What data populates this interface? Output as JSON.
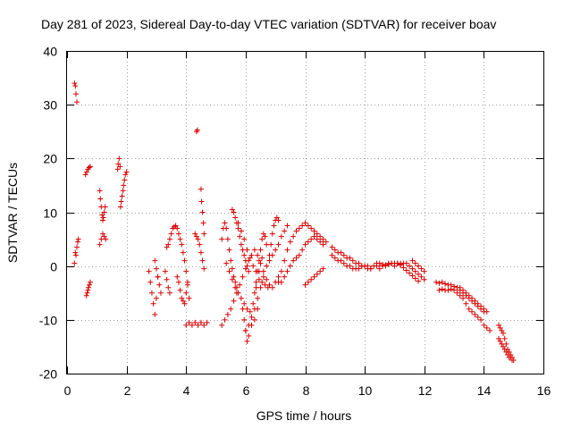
{
  "chart_data": {
    "type": "scatter",
    "title": "Day 281 of 2023, Sidereal Day-to-day VTEC variation (SDTVAR) for receiver boav",
    "xlabel": "GPS time / hours",
    "ylabel": "SDTVAR / TECUs",
    "xlim": [
      0,
      16
    ],
    "ylim": [
      -20,
      40
    ],
    "xticks": [
      "0",
      "2",
      "4",
      "6",
      "8",
      "10",
      "12",
      "14",
      "16"
    ],
    "yticks": [
      "-20",
      "-10",
      "0",
      "10",
      "20",
      "30",
      "40"
    ],
    "grid": true,
    "marker": "+",
    "color": "#e00000",
    "series": [
      {
        "name": "s1",
        "x": [
          0.25,
          0.28,
          0.3,
          0.33
        ],
        "y": [
          34,
          33.5,
          32,
          30.5
        ]
      },
      {
        "name": "s2",
        "x": [
          0.25,
          0.28,
          0.3,
          0.33,
          0.36,
          0.38
        ],
        "y": [
          0.5,
          2.5,
          2.0,
          3.5,
          4.5,
          5.0
        ]
      },
      {
        "name": "s3",
        "x": [
          0.62,
          0.66,
          0.7,
          0.74,
          0.78
        ],
        "y": [
          17,
          17.5,
          18,
          18.3,
          18.5
        ]
      },
      {
        "name": "s4",
        "x": [
          0.65,
          0.68,
          0.7,
          0.72,
          0.75,
          0.78
        ],
        "y": [
          -5.5,
          -5,
          -4.5,
          -4,
          -3.5,
          -3
        ]
      },
      {
        "name": "s5",
        "x": [
          1.1,
          1.12,
          1.15,
          1.18,
          1.2,
          1.22,
          1.25,
          1.28
        ],
        "y": [
          14,
          12.5,
          11,
          9.5,
          8.5,
          9,
          10,
          11
        ]
      },
      {
        "name": "s6",
        "x": [
          1.1,
          1.15,
          1.2,
          1.25,
          1.3
        ],
        "y": [
          4,
          5,
          6,
          5.5,
          5
        ]
      },
      {
        "name": "s7",
        "x": [
          1.7,
          1.72,
          1.75,
          1.78,
          1.8,
          1.82,
          1.85,
          1.88,
          1.9,
          1.93,
          1.96,
          2.0
        ],
        "y": [
          18,
          19,
          20,
          18.5,
          11,
          12,
          13,
          14,
          15,
          16,
          17,
          17.5
        ]
      },
      {
        "name": "s8",
        "x": [
          2.75,
          2.8,
          2.85,
          2.9,
          2.95,
          3.0,
          3.05
        ],
        "y": [
          -1,
          -3,
          -5,
          -7,
          -9,
          -6,
          -2
        ]
      },
      {
        "name": "s9",
        "x": [
          2.95,
          3.0,
          3.05,
          3.1,
          3.15
        ],
        "y": [
          1,
          -0.5,
          -2,
          -3.5,
          -5
        ]
      },
      {
        "name": "s10",
        "x": [
          3.3,
          3.35,
          3.4,
          3.45
        ],
        "y": [
          -1,
          -2.5,
          -4,
          -5
        ]
      },
      {
        "name": "s11",
        "x": [
          3.35,
          3.4,
          3.45,
          3.5,
          3.55,
          3.6,
          3.65,
          3.7,
          3.75,
          3.8,
          3.85,
          3.9,
          3.95,
          4.0,
          4.05,
          4.1
        ],
        "y": [
          3.5,
          4,
          5,
          6,
          7,
          7.3,
          7.5,
          7,
          6,
          5,
          4,
          2.5,
          1,
          -1,
          -3.5,
          -6
        ]
      },
      {
        "name": "s12",
        "x": [
          3.7,
          3.75,
          3.8,
          3.85,
          3.9,
          3.95,
          4.0,
          4.05
        ],
        "y": [
          -2,
          -3,
          -4.5,
          -6,
          -6.5,
          -7,
          -5,
          -3
        ]
      },
      {
        "name": "s13",
        "x": [
          4.0,
          4.1,
          4.2,
          4.3,
          4.4,
          4.5,
          4.6,
          4.7
        ],
        "y": [
          -11,
          -10.5,
          -11,
          -10.5,
          -11,
          -10.5,
          -11,
          -10.5
        ]
      },
      {
        "name": "s14",
        "x": [
          4.3,
          4.35,
          4.4,
          4.45,
          4.5,
          4.55,
          4.6
        ],
        "y": [
          6,
          5.5,
          5,
          4,
          2.5,
          1,
          -0.5
        ]
      },
      {
        "name": "s15",
        "x": [
          4.35,
          4.38
        ],
        "y": [
          25,
          25.3
        ]
      },
      {
        "name": "s16",
        "x": [
          4.5,
          4.52,
          4.55,
          4.58,
          4.6
        ],
        "y": [
          14.3,
          12,
          10,
          8,
          6
        ]
      },
      {
        "name": "s17",
        "x": [
          5.2,
          5.3,
          5.4,
          5.5,
          5.6,
          5.7,
          5.8,
          5.9,
          6.0,
          6.1,
          6.2,
          6.3,
          6.4,
          6.5,
          6.6,
          6.7,
          6.8,
          6.9,
          7.0,
          7.1
        ],
        "y": [
          -11,
          -10,
          -9,
          -8,
          -6.5,
          -5,
          -3.5,
          -2,
          -0.5,
          1,
          2,
          3,
          2,
          0.5,
          -1,
          -2.5,
          -3.5,
          -4,
          -3,
          -2
        ]
      },
      {
        "name": "s18",
        "x": [
          5.35,
          5.45,
          5.55,
          5.65,
          5.75,
          5.85,
          5.95,
          6.05,
          6.15,
          6.25,
          6.35,
          6.45,
          6.55
        ],
        "y": [
          0.5,
          -1,
          -2.5,
          -4,
          -5,
          -6,
          -7,
          -8,
          -8.5,
          -7,
          -4,
          -1,
          1.5
        ]
      },
      {
        "name": "s19",
        "x": [
          5.2,
          5.25,
          5.3,
          5.35,
          5.4,
          5.45,
          5.5,
          5.55,
          5.6,
          5.65,
          5.7
        ],
        "y": [
          5,
          7,
          8,
          7,
          5,
          3,
          1,
          -0.5,
          -2,
          -3,
          -4
        ]
      },
      {
        "name": "s20",
        "x": [
          5.55,
          5.6,
          5.65,
          5.7,
          5.75,
          5.8,
          5.85,
          5.9,
          5.95,
          6.0,
          6.05,
          6.1
        ],
        "y": [
          10.5,
          10,
          9,
          8,
          7,
          5.5,
          4,
          3,
          2,
          1,
          0,
          -1
        ]
      },
      {
        "name": "s21",
        "x": [
          5.75,
          5.85,
          5.95,
          6.05,
          6.15,
          6.25,
          6.35,
          6.45,
          6.55,
          6.65,
          6.75
        ],
        "y": [
          8,
          6.5,
          5,
          3,
          1.5,
          0,
          -1,
          -2.5,
          -3,
          -3.5,
          -4
        ]
      },
      {
        "name": "s22",
        "x": [
          5.9,
          5.95,
          6.0,
          6.05,
          6.1,
          6.2,
          6.3,
          6.4
        ],
        "y": [
          -8,
          -10,
          -12,
          -14,
          -13,
          -11,
          -10,
          -8
        ]
      },
      {
        "name": "s23",
        "x": [
          6.0,
          6.1,
          6.2,
          6.3,
          6.4,
          6.5,
          6.6,
          6.7,
          6.8,
          6.9,
          7.0,
          7.1,
          7.2,
          7.3,
          7.4
        ],
        "y": [
          -12,
          -11,
          -9.5,
          -8,
          -6,
          -4,
          -2,
          0,
          1,
          2,
          3,
          4,
          5.5,
          6.5,
          7.5
        ]
      },
      {
        "name": "s24",
        "x": [
          6.3,
          6.35,
          6.4,
          6.45,
          6.5,
          6.55,
          6.6,
          6.65,
          6.7
        ],
        "y": [
          -5,
          -3,
          -1,
          1,
          3,
          5,
          6,
          5.5,
          4
        ]
      },
      {
        "name": "s25",
        "x": [
          6.8,
          6.85,
          6.9,
          6.95,
          7.0,
          7.05,
          7.1
        ],
        "y": [
          2,
          4,
          6,
          7.5,
          8.5,
          9,
          8.5
        ]
      },
      {
        "name": "s26",
        "x": [
          7.1,
          7.2,
          7.3,
          7.4,
          7.5,
          7.6,
          7.7,
          7.8,
          7.9,
          8.0,
          8.1,
          8.2,
          8.3,
          8.4,
          8.5,
          8.6,
          8.7
        ],
        "y": [
          -3,
          -1,
          1,
          3,
          4.5,
          5.5,
          6.5,
          7,
          7.5,
          8,
          7.5,
          7,
          6.5,
          6,
          5.5,
          5,
          4.5
        ]
      },
      {
        "name": "s27",
        "x": [
          7.2,
          7.3,
          7.4,
          7.5,
          7.6,
          7.7,
          7.8,
          7.9,
          8.0,
          8.1,
          8.2,
          8.3,
          8.4,
          8.5,
          8.6
        ],
        "y": [
          -3,
          -2,
          -1,
          0,
          1,
          1.5,
          2,
          3,
          4,
          4.5,
          5,
          5.5,
          5,
          4.5,
          4
        ]
      },
      {
        "name": "s28",
        "x": [
          8.0,
          8.1,
          8.2,
          8.3,
          8.4,
          8.5,
          8.6
        ],
        "y": [
          -3.5,
          -3,
          -2.5,
          -2,
          -1.5,
          -1,
          -0.5
        ]
      },
      {
        "name": "s29",
        "x": [
          8.9,
          9.0,
          9.1,
          9.2,
          9.3,
          9.4,
          9.5,
          9.6,
          9.7,
          9.8,
          9.9,
          10.0,
          10.1,
          10.2,
          10.3,
          10.4,
          10.5,
          10.6,
          10.7,
          10.8,
          10.9,
          11.0,
          11.1,
          11.2
        ],
        "y": [
          3.5,
          3,
          2.5,
          2.5,
          2,
          1.5,
          1.5,
          1,
          0.5,
          0.5,
          0,
          0,
          -0.5,
          -0.5,
          0,
          0,
          -0.5,
          0,
          0,
          0.5,
          0.5,
          0,
          0.5,
          0.5
        ]
      },
      {
        "name": "s30",
        "x": [
          8.9,
          9.0,
          9.1,
          9.2,
          9.3,
          9.4,
          9.5,
          9.6,
          9.7,
          9.8,
          9.9,
          10.0,
          10.1,
          10.2
        ],
        "y": [
          2,
          1.5,
          1,
          1,
          0.5,
          0,
          0,
          -0.5,
          -0.5,
          -0.5,
          0,
          0,
          0,
          -0.5
        ]
      },
      {
        "name": "s31",
        "x": [
          10.4,
          10.5,
          10.6,
          10.7,
          10.8,
          10.9,
          11.0,
          11.1,
          11.2,
          11.3,
          11.4,
          11.5,
          11.6,
          11.7,
          11.8,
          11.9,
          12.0
        ],
        "y": [
          0.5,
          0.5,
          0.3,
          0.2,
          0.3,
          0.5,
          0.5,
          0.5,
          0.3,
          0.5,
          0.5,
          0,
          -0.5,
          -1,
          -1.5,
          -2,
          -2.5
        ]
      },
      {
        "name": "s32",
        "x": [
          11.6,
          11.7,
          11.8,
          11.9,
          12.0
        ],
        "y": [
          1,
          0.5,
          0,
          -0.5,
          -1
        ]
      },
      {
        "name": "s33",
        "x": [
          11.2,
          11.3,
          11.4,
          11.5,
          11.6,
          11.7,
          11.8
        ],
        "y": [
          0.2,
          -0.3,
          -0.8,
          -1.3,
          -1.8,
          -2.3,
          -2.8
        ]
      },
      {
        "name": "s34",
        "x": [
          12.4,
          12.5,
          12.6,
          12.7,
          12.8,
          12.9,
          13.0,
          13.1,
          13.2,
          13.3,
          13.4,
          13.5,
          13.6,
          13.7,
          13.8,
          13.9,
          14.0
        ],
        "y": [
          -3,
          -3.2,
          -3,
          -3.3,
          -3.5,
          -3.5,
          -3.8,
          -4,
          -4.5,
          -5,
          -5.5,
          -6,
          -6.5,
          -7,
          -7.5,
          -8,
          -8.5
        ]
      },
      {
        "name": "s35",
        "x": [
          12.5,
          12.6,
          12.7,
          12.8,
          12.9,
          13.0,
          13.1,
          13.2,
          13.3,
          13.4,
          13.5,
          13.6,
          13.7,
          13.8,
          13.9,
          14.0,
          14.1,
          14.2
        ],
        "y": [
          -4.5,
          -4.3,
          -4.5,
          -4.5,
          -4.3,
          -4.5,
          -5,
          -5.5,
          -6,
          -7,
          -8,
          -8.5,
          -9,
          -9.5,
          -10,
          -11,
          -11.5,
          -12
        ]
      },
      {
        "name": "s36",
        "x": [
          13.2,
          13.3,
          13.4,
          13.5,
          13.6,
          13.7,
          13.8,
          13.9,
          14.0,
          14.1
        ],
        "y": [
          -4,
          -4.5,
          -5,
          -5.5,
          -6,
          -6.5,
          -7,
          -7.5,
          -8,
          -8.5
        ]
      },
      {
        "name": "s37",
        "x": [
          14.5,
          14.55,
          14.6,
          14.65,
          14.7,
          14.75,
          14.8,
          14.85,
          14.9,
          14.95,
          15.0
        ],
        "y": [
          -11,
          -11.5,
          -12,
          -12.5,
          -13.5,
          -14.5,
          -15.5,
          -16,
          -16.5,
          -17,
          -17.5
        ]
      },
      {
        "name": "s38",
        "x": [
          14.5,
          14.55,
          14.6,
          14.65,
          14.7,
          14.75,
          14.8,
          14.85,
          14.9,
          14.95
        ],
        "y": [
          -13.5,
          -14,
          -14.5,
          -15,
          -15.5,
          -16,
          -16.5,
          -17,
          -17,
          -17.5
        ]
      }
    ]
  }
}
